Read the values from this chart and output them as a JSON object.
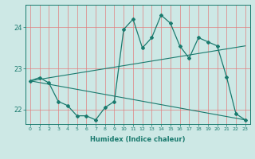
{
  "xlabel": "Humidex (Indice chaleur)",
  "bg_color": "#cde8e5",
  "grid_color_v": "#e08080",
  "grid_color_h": "#e08080",
  "line_color": "#1a7a6e",
  "xlim": [
    -0.5,
    23.5
  ],
  "ylim": [
    21.65,
    24.55
  ],
  "yticks": [
    22,
    23,
    24
  ],
  "xticks": [
    0,
    1,
    2,
    3,
    4,
    5,
    6,
    7,
    8,
    9,
    10,
    11,
    12,
    13,
    14,
    15,
    16,
    17,
    18,
    19,
    20,
    21,
    22,
    23
  ],
  "series": {
    "line1": {
      "x": [
        0,
        1,
        2,
        3,
        4,
        5,
        6,
        7,
        8,
        9,
        10,
        11,
        12,
        13,
        14,
        15,
        16,
        17,
        18,
        19,
        20,
        21,
        22,
        23
      ],
      "y": [
        22.7,
        22.78,
        22.65,
        22.2,
        22.1,
        21.85,
        21.85,
        21.75,
        22.05,
        22.2,
        23.95,
        24.2,
        23.5,
        23.75,
        24.3,
        24.1,
        23.55,
        23.25,
        23.75,
        23.65,
        23.55,
        22.8,
        21.9,
        21.75
      ]
    },
    "line2": {
      "x": [
        0,
        23
      ],
      "y": [
        22.7,
        23.55
      ]
    },
    "line3": {
      "x": [
        0,
        23
      ],
      "y": [
        22.7,
        21.75
      ]
    }
  }
}
